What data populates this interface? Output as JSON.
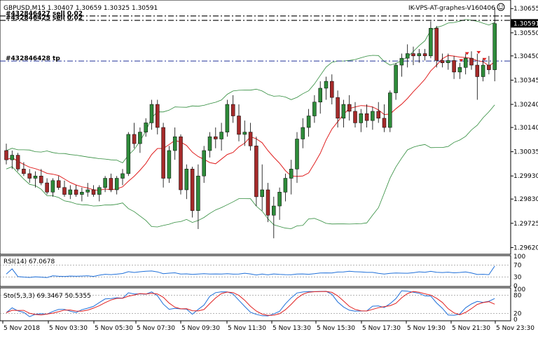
{
  "chart_header": {
    "symbol_info": "GBPUSD,M15  1.30407 1.30659 1.30325 1.30591",
    "expert_name": "IK-VPS-AT-graphes-V160406",
    "expert_icon": "smiley-icon"
  },
  "colors": {
    "background": "#ffffff",
    "bull": "#2e8b3a",
    "bear": "#a52a2a",
    "bollinger": "#2e8b3a",
    "ma": "#e02020",
    "rsi": "#1e6fd9",
    "stoch_main": "#1e6fd9",
    "stoch_signal": "#e02020",
    "price_badge_bg": "#000000",
    "price_badge_fg": "#ffffff"
  },
  "order_lines": [
    {
      "label": "#432846427 sell 0.02",
      "price": 1.30623
    },
    {
      "label": "#432846425 sell 0.02",
      "price": 1.30604
    },
    {
      "label": "#432846428 tp",
      "price": 1.30428
    }
  ],
  "price_axis": {
    "ticks": [
      "1.30655",
      "1.30550",
      "1.30450",
      "1.30345",
      "1.30240",
      "1.30140",
      "1.30035",
      "1.29930",
      "1.29830",
      "1.29725",
      "1.29620"
    ],
    "current": "1.30591"
  },
  "time_axis": [
    "5 Nov 2018",
    "5 Nov 03:30",
    "5 Nov 05:30",
    "5 Nov 07:30",
    "5 Nov 09:30",
    "5 Nov 11:30",
    "5 Nov 13:30",
    "5 Nov 15:30",
    "5 Nov 17:30",
    "5 Nov 19:30",
    "5 Nov 21:30",
    "5 Nov 23:30"
  ],
  "rsi_panel": {
    "label": "RSI(14) 67.0678",
    "levels": [
      "100",
      "70",
      "30",
      "0"
    ]
  },
  "stoch_panel": {
    "label": "Sto(5,3,3) 69.3467 50.5355",
    "levels": [
      "100",
      "80",
      "20",
      "0"
    ]
  },
  "chart_data": {
    "type": "candlestick",
    "ylim": [
      1.296,
      1.3068
    ],
    "candles": [
      [
        1.3004,
        1.3007,
        1.2998,
        1.3
      ],
      [
        1.3,
        1.3004,
        1.2996,
        1.3002
      ],
      [
        1.3002,
        1.3003,
        1.2995,
        1.2996
      ],
      [
        1.2996,
        1.2999,
        1.2993,
        1.2994
      ],
      [
        1.2994,
        1.2996,
        1.299,
        1.2992
      ],
      [
        1.2992,
        1.2995,
        1.2988,
        1.2993
      ],
      [
        1.2993,
        1.2996,
        1.2989,
        1.299
      ],
      [
        1.299,
        1.2992,
        1.2985,
        1.2986
      ],
      [
        1.2986,
        1.2992,
        1.2984,
        1.2991
      ],
      [
        1.2991,
        1.2993,
        1.2987,
        1.2988
      ],
      [
        1.2988,
        1.2991,
        1.2984,
        1.2985
      ],
      [
        1.2985,
        1.2989,
        1.2983,
        1.2987
      ],
      [
        1.2987,
        1.2989,
        1.2984,
        1.2985
      ],
      [
        1.2985,
        1.2988,
        1.2982,
        1.2986
      ],
      [
        1.2986,
        1.299,
        1.2984,
        1.2987
      ],
      [
        1.2987,
        1.2989,
        1.2984,
        1.2985
      ],
      [
        1.2985,
        1.2989,
        1.2982,
        1.2988
      ],
      [
        1.2988,
        1.2993,
        1.2986,
        1.2992
      ],
      [
        1.2992,
        1.2994,
        1.2986,
        1.2987
      ],
      [
        1.2987,
        1.2993,
        1.2985,
        1.2992
      ],
      [
        1.2992,
        1.2996,
        1.2989,
        1.2994
      ],
      [
        1.2994,
        1.3012,
        1.2993,
        1.3011
      ],
      [
        1.3011,
        1.3016,
        1.3005,
        1.3007
      ],
      [
        1.3007,
        1.3014,
        1.3003,
        1.3012
      ],
      [
        1.3012,
        1.3018,
        1.301,
        1.3016
      ],
      [
        1.3016,
        1.3026,
        1.3013,
        1.3024
      ],
      [
        1.3024,
        1.3026,
        1.3011,
        1.3014
      ],
      [
        1.3014,
        1.3016,
        1.2988,
        1.2992
      ],
      [
        1.2992,
        1.3006,
        1.299,
        1.3004
      ],
      [
        1.3004,
        1.3014,
        1.3,
        1.301
      ],
      [
        1.301,
        1.3011,
        1.2985,
        1.2987
      ],
      [
        1.2987,
        1.2998,
        1.2983,
        1.2996
      ],
      [
        1.2996,
        1.2997,
        1.2975,
        1.2978
      ],
      [
        1.2978,
        1.2998,
        1.297,
        1.2993
      ],
      [
        1.2993,
        1.3006,
        1.299,
        1.3004
      ],
      [
        1.3004,
        1.3012,
        1.3001,
        1.301
      ],
      [
        1.301,
        1.3014,
        1.3005,
        1.3009
      ],
      [
        1.3009,
        1.3016,
        1.3004,
        1.3012
      ],
      [
        1.3012,
        1.3026,
        1.301,
        1.3024
      ],
      [
        1.3024,
        1.3028,
        1.3016,
        1.3019
      ],
      [
        1.3019,
        1.3024,
        1.3008,
        1.3011
      ],
      [
        1.3011,
        1.3017,
        1.3006,
        1.3012
      ],
      [
        1.3012,
        1.3016,
        1.3004,
        1.3006
      ],
      [
        1.3006,
        1.301,
        1.298,
        1.2984
      ],
      [
        1.2984,
        1.2998,
        1.2978,
        1.2987
      ],
      [
        1.2987,
        1.299,
        1.2973,
        1.2976
      ],
      [
        1.2976,
        1.2984,
        1.2966,
        1.298
      ],
      [
        1.298,
        1.2988,
        1.2974,
        1.2986
      ],
      [
        1.2986,
        1.2994,
        1.2982,
        1.2992
      ],
      [
        1.2992,
        1.3,
        1.2985,
        1.2996
      ],
      [
        1.2996,
        1.3012,
        1.299,
        1.3009
      ],
      [
        1.3009,
        1.3018,
        1.3005,
        1.3014
      ],
      [
        1.3014,
        1.3022,
        1.301,
        1.3019
      ],
      [
        1.3019,
        1.3028,
        1.3016,
        1.3025
      ],
      [
        1.3025,
        1.3034,
        1.302,
        1.3031
      ],
      [
        1.3031,
        1.3036,
        1.3026,
        1.3034
      ],
      [
        1.3034,
        1.3037,
        1.3024,
        1.3027
      ],
      [
        1.3027,
        1.303,
        1.3014,
        1.3018
      ],
      [
        1.3018,
        1.3026,
        1.3014,
        1.3024
      ],
      [
        1.3024,
        1.3028,
        1.3017,
        1.3021
      ],
      [
        1.3021,
        1.3025,
        1.3014,
        1.3016
      ],
      [
        1.3016,
        1.3022,
        1.3012,
        1.302
      ],
      [
        1.302,
        1.3024,
        1.3014,
        1.3017
      ],
      [
        1.3017,
        1.3023,
        1.3013,
        1.3021
      ],
      [
        1.3021,
        1.3025,
        1.3016,
        1.3018
      ],
      [
        1.3018,
        1.3024,
        1.3012,
        1.3014
      ],
      [
        1.3014,
        1.303,
        1.3012,
        1.3029
      ],
      [
        1.3029,
        1.3042,
        1.3026,
        1.3041
      ],
      [
        1.3041,
        1.3046,
        1.3036,
        1.3044
      ],
      [
        1.3044,
        1.305,
        1.304,
        1.3046
      ],
      [
        1.3046,
        1.3049,
        1.3041,
        1.3045
      ],
      [
        1.3045,
        1.3048,
        1.3042,
        1.3046
      ],
      [
        1.3046,
        1.3048,
        1.3043,
        1.3045
      ],
      [
        1.3045,
        1.306,
        1.3044,
        1.3057
      ],
      [
        1.3057,
        1.3058,
        1.304,
        1.3043
      ],
      [
        1.3043,
        1.3046,
        1.304,
        1.3042
      ],
      [
        1.3042,
        1.3046,
        1.3039,
        1.3043
      ],
      [
        1.3043,
        1.3045,
        1.3035,
        1.3038
      ],
      [
        1.3038,
        1.3042,
        1.3035,
        1.304
      ],
      [
        1.304,
        1.3046,
        1.3037,
        1.3044
      ],
      [
        1.3044,
        1.3047,
        1.3039,
        1.3041
      ],
      [
        1.3041,
        1.3046,
        1.3026,
        1.3036
      ],
      [
        1.3036,
        1.3044,
        1.3034,
        1.3041
      ],
      [
        1.3041,
        1.3045,
        1.3037,
        1.3039
      ],
      [
        1.3039,
        1.3066,
        1.3034,
        1.3059
      ]
    ],
    "rsi_value": 67.0678,
    "stoch_main_value": 69.3467,
    "stoch_signal_value": 50.5355
  }
}
